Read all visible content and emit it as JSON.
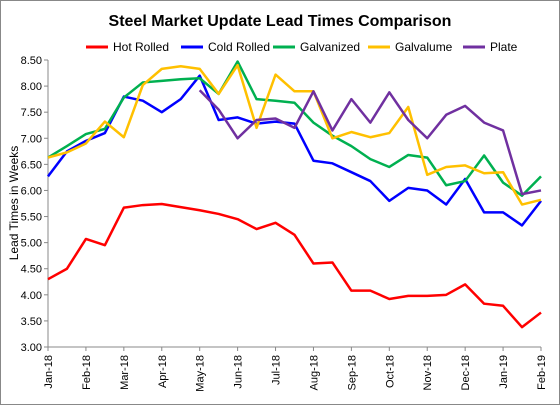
{
  "chart_data": {
    "type": "line",
    "title": "Steel Market Update Lead Times Comparison",
    "y_label": "Lead Times in Weeks",
    "categories": [
      "Jan-18",
      null,
      "Feb-18",
      null,
      "Mar-18",
      null,
      "Apr-18",
      null,
      "May-18",
      null,
      "Jun-18",
      null,
      "Jul-18",
      null,
      "Aug-18",
      null,
      "Sep-18",
      null,
      "Oct-18",
      null,
      "Nov-18",
      null,
      "Dec-18",
      null,
      "Jan-19",
      null,
      "Feb-19"
    ],
    "series": [
      {
        "name": "Hot Rolled",
        "color": "#ff0000",
        "values": [
          4.3,
          4.5,
          5.07,
          4.95,
          5.67,
          5.72,
          5.74,
          5.68,
          5.62,
          5.55,
          5.45,
          5.26,
          5.38,
          5.15,
          4.6,
          4.62,
          4.08,
          4.08,
          3.92,
          3.98,
          3.98,
          4.0,
          4.2,
          3.83,
          3.79,
          3.38,
          3.66
        ]
      },
      {
        "name": "Cold Rolled",
        "color": "#0000ff",
        "values": [
          6.27,
          6.75,
          6.95,
          7.1,
          7.8,
          7.72,
          7.5,
          7.75,
          8.2,
          7.35,
          7.4,
          7.28,
          7.32,
          7.28,
          6.57,
          6.52,
          6.35,
          6.18,
          5.8,
          6.05,
          6.0,
          5.73,
          6.22,
          5.58,
          5.58,
          5.33,
          5.8
        ]
      },
      {
        "name": "Galvanized",
        "color": "#00b050",
        "values": [
          6.63,
          6.85,
          7.08,
          7.18,
          7.78,
          8.07,
          8.1,
          8.13,
          8.15,
          7.85,
          8.47,
          7.75,
          7.72,
          7.68,
          7.3,
          7.05,
          6.85,
          6.6,
          6.45,
          6.68,
          6.63,
          6.1,
          6.18,
          6.67,
          6.15,
          5.9,
          6.27
        ]
      },
      {
        "name": "Galvalume",
        "color": "#ffc000",
        "values": [
          6.63,
          6.73,
          6.9,
          7.32,
          7.02,
          8.02,
          8.33,
          8.38,
          8.33,
          7.85,
          8.4,
          7.2,
          8.22,
          7.9,
          7.9,
          7.0,
          7.12,
          7.02,
          7.1,
          7.6,
          6.3,
          6.45,
          6.48,
          6.33,
          6.35,
          5.73,
          5.82
        ]
      },
      {
        "name": "Plate",
        "color": "#7030a0",
        "values": [
          null,
          null,
          null,
          null,
          null,
          null,
          null,
          null,
          7.92,
          7.55,
          7.0,
          7.35,
          7.38,
          7.2,
          7.9,
          7.15,
          7.75,
          7.3,
          7.88,
          7.35,
          7.0,
          7.45,
          7.62,
          7.3,
          7.15,
          5.93,
          6.0
        ]
      }
    ],
    "ylim": [
      3,
      8.5
    ],
    "yticks": [
      {
        "value": 3,
        "label": "3.00"
      },
      {
        "value": 3.5,
        "label": "3.50"
      },
      {
        "value": 4,
        "label": "4.00"
      },
      {
        "value": 4.5,
        "label": "4.50"
      },
      {
        "value": 5,
        "label": "5.00"
      },
      {
        "value": 5.5,
        "label": "5.50"
      },
      {
        "value": 6,
        "label": "6.00"
      },
      {
        "value": 6.5,
        "label": "6.50"
      },
      {
        "value": 7,
        "label": "7.00"
      },
      {
        "value": 7.5,
        "label": "7.50"
      },
      {
        "value": 8,
        "label": "8.00"
      },
      {
        "value": 8.5,
        "label": "8.50"
      }
    ],
    "grid": false,
    "legend": "top"
  }
}
